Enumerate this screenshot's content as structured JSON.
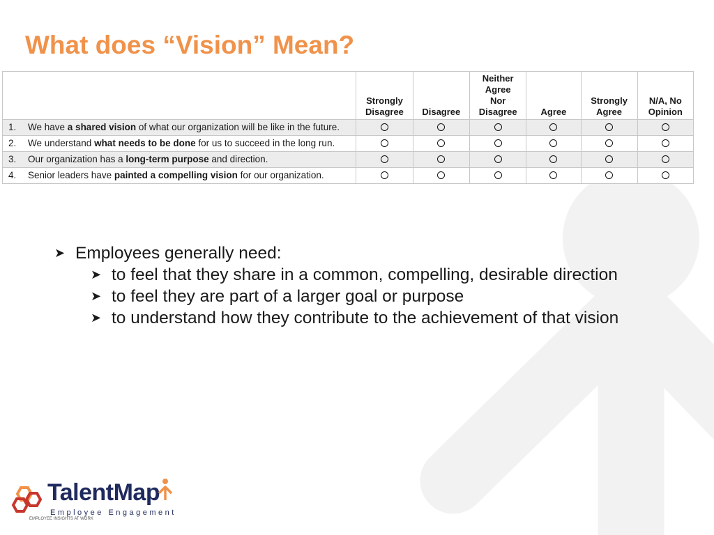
{
  "slide": {
    "title": "What does “Vision” Mean?"
  },
  "table": {
    "columns": [
      {
        "line1": "",
        "line2": "",
        "line3": "",
        "line4": "Strongly",
        "line5": "Disagree"
      },
      {
        "line1": "",
        "line2": "",
        "line3": "",
        "line4": "",
        "line5": "Disagree"
      },
      {
        "line1": "Neither",
        "line2": "Agree",
        "line3": "Nor",
        "line4": "",
        "line5": "Disagree"
      },
      {
        "line1": "",
        "line2": "",
        "line3": "",
        "line4": "",
        "line5": "Agree"
      },
      {
        "line1": "",
        "line2": "",
        "line3": "",
        "line4": "Strongly",
        "line5": "Agree"
      },
      {
        "line1": "",
        "line2": "",
        "line3": "",
        "line4": "N/A, No",
        "line5": "Opinion"
      }
    ],
    "rows": [
      {
        "num": "1.",
        "pre": "We have ",
        "bold": "a shared vision",
        "post": " of what our organization will be like in the future."
      },
      {
        "num": "2.",
        "pre": "We understand ",
        "bold": "what needs to be done",
        "post": " for us to succeed in the long run."
      },
      {
        "num": "3.",
        "pre": "Our organization has a ",
        "bold": "long-term purpose",
        "post": " and direction."
      },
      {
        "num": "4.",
        "pre": "Senior leaders have ",
        "bold": "painted a compelling vision",
        "post": " for our organization."
      }
    ]
  },
  "bullets": {
    "main": "Employees generally need:",
    "sub": [
      "to feel that they share in a common, compelling, desirable direction",
      "to feel they are part of a larger goal or purpose",
      "to understand how they contribute to the achievement of that vision"
    ]
  },
  "logo": {
    "name": "TalentMap",
    "subtitle": "Employee Engagement",
    "tagline": "EMPLOYEE INSIGHTS AT WORK"
  },
  "colors": {
    "title": "#F0924A",
    "row_shade": "#ECECEC",
    "logo_navy": "#1F2A5E",
    "logo_orange": "#F0924A",
    "logo_red": "#C8372D",
    "watermark": "#F2F2F2"
  },
  "icons": {
    "bullet": "arrowhead-bullet-icon",
    "option": "radio-circle-icon",
    "background": "person-arrow-watermark-icon"
  }
}
